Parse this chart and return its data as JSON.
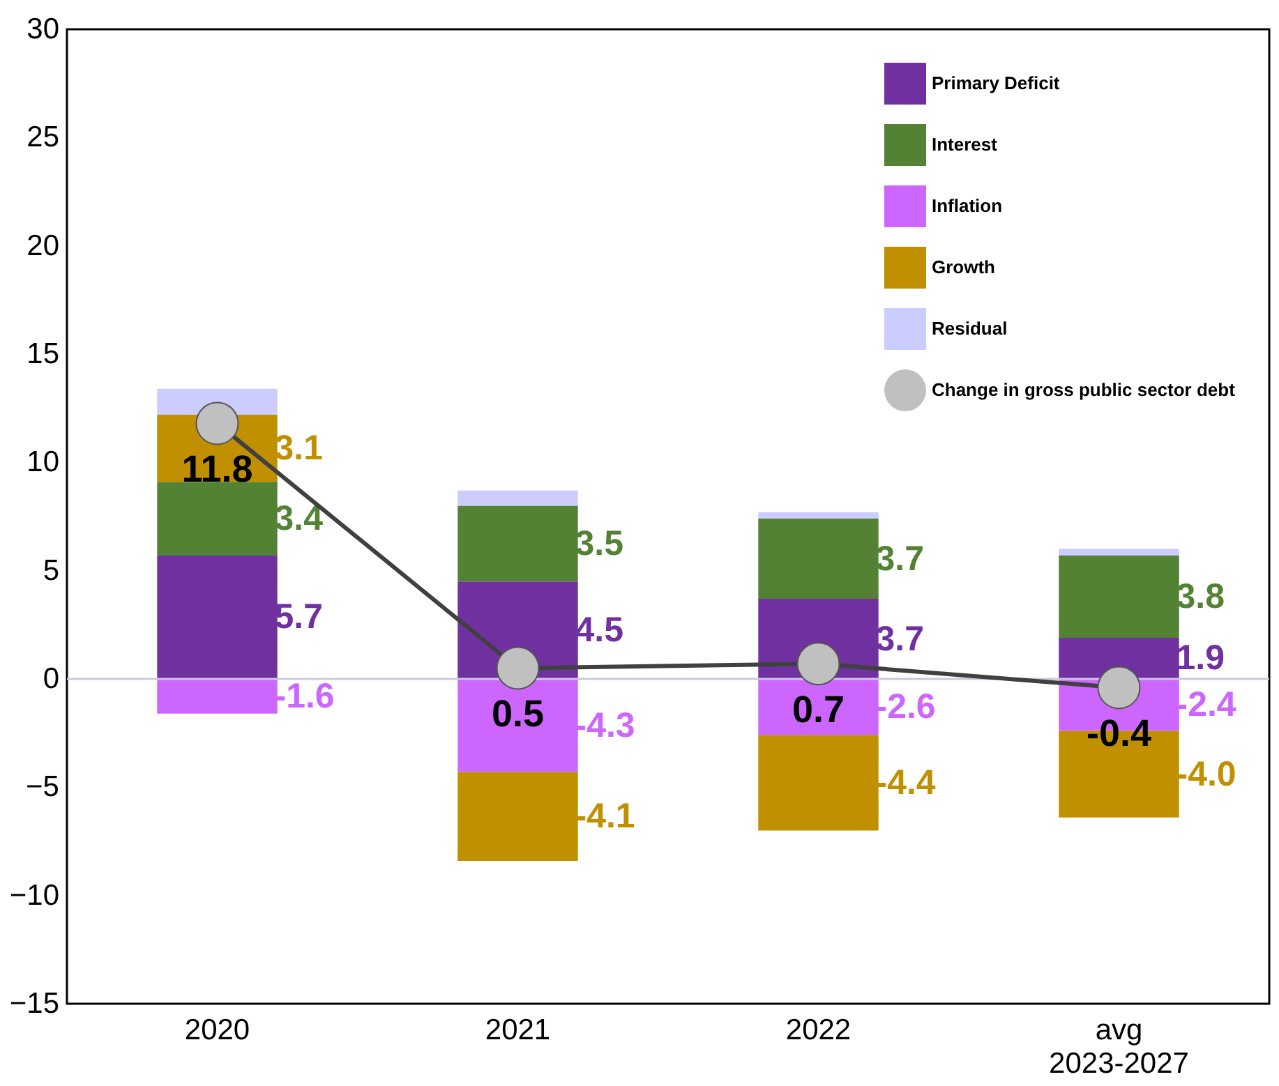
{
  "chart_data": {
    "type": "bar",
    "stacked": true,
    "categories": [
      "2020",
      "2021",
      "2022",
      "avg 2023-2027"
    ],
    "series": [
      {
        "name": "Primary Deficit",
        "color": "#7030a0",
        "values": [
          5.7,
          4.5,
          3.7,
          1.9
        ],
        "value_labels": [
          "5.7",
          "4.5",
          "3.7",
          "1.9"
        ]
      },
      {
        "name": "Interest",
        "color": "#548235",
        "values": [
          3.4,
          3.5,
          3.7,
          3.8
        ],
        "value_labels": [
          "3.4",
          "3.5",
          "3.7",
          "3.8"
        ]
      },
      {
        "name": "Inflation",
        "color": "#cc66ff",
        "values": [
          -1.6,
          -4.3,
          -2.6,
          -2.4
        ],
        "value_labels": [
          "-1.6",
          "-4.3",
          "-2.6",
          "-2.4"
        ]
      },
      {
        "name": "Growth",
        "color": "#c09000",
        "values": [
          3.1,
          -4.1,
          -4.4,
          -4.0
        ],
        "value_labels": [
          "3.1",
          "-4.1",
          "-4.4",
          "-4.0"
        ]
      },
      {
        "name": "Residual",
        "color": "#ccccff",
        "values": [
          1.2,
          0.7,
          0.3,
          0.3
        ],
        "value_labels": [
          null,
          null,
          null,
          null
        ]
      },
      {
        "name": "Change in gross public sector debt",
        "type": "line",
        "color": "#c0c0c0",
        "marker": "circle",
        "values": [
          11.8,
          0.5,
          0.7,
          -0.4
        ],
        "value_labels": [
          "11.8",
          "0.5",
          "0.7",
          "-0.4"
        ]
      }
    ],
    "ylim": [
      -15,
      30
    ],
    "yticks": [
      -15,
      -10,
      -5,
      0,
      5,
      10,
      15,
      20,
      25,
      30
    ],
    "ref_lines": [
      {
        "axis": "y",
        "value": 0,
        "color": "#c8c8e0"
      }
    ],
    "legend": "top right",
    "grid": false
  }
}
